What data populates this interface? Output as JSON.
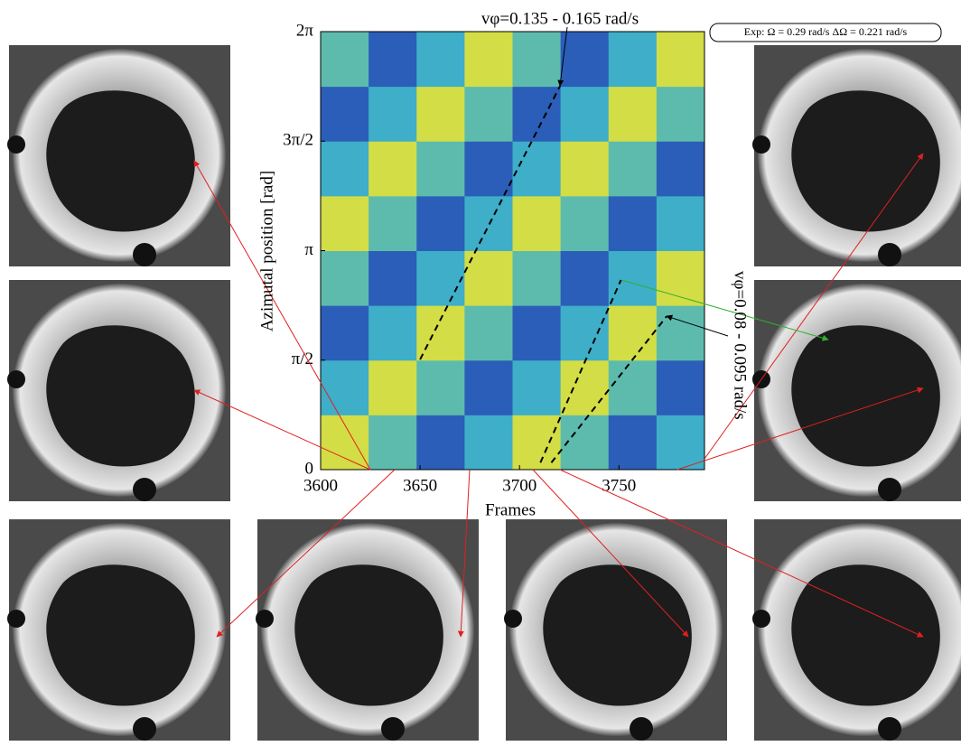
{
  "chart_data": {
    "type": "heatmap",
    "xlabel": "Frames",
    "ylabel": "Azimutal position [rad]",
    "xlim": [
      3600,
      3793
    ],
    "ylim": [
      0,
      6.2832
    ],
    "xticks": [
      3600,
      3650,
      3700,
      3750
    ],
    "yticks": [
      0,
      {
        "value": 1.5708,
        "label": "π/2"
      },
      {
        "value": 3.1416,
        "label": "π"
      },
      {
        "value": 4.7124,
        "label": "3π/2"
      },
      {
        "value": 6.2832,
        "label": "2π"
      }
    ],
    "zlim": [
      0,
      1
    ],
    "colorscale": [
      "#2b3fa8",
      "#2aa5dc",
      "#8fd07e",
      "#f0e22c"
    ],
    "z": [
      [
        0.9,
        0.5,
        0.1,
        0.4,
        0.9,
        0.5,
        0.1,
        0.4
      ],
      [
        0.4,
        0.9,
        0.5,
        0.1,
        0.4,
        0.9,
        0.5,
        0.1
      ],
      [
        0.1,
        0.4,
        0.9,
        0.5,
        0.1,
        0.4,
        0.9,
        0.5
      ],
      [
        0.5,
        0.1,
        0.4,
        0.9,
        0.5,
        0.1,
        0.4,
        0.9
      ],
      [
        0.9,
        0.5,
        0.1,
        0.4,
        0.9,
        0.5,
        0.1,
        0.4
      ],
      [
        0.4,
        0.9,
        0.5,
        0.1,
        0.4,
        0.9,
        0.5,
        0.1
      ],
      [
        0.1,
        0.4,
        0.9,
        0.5,
        0.1,
        0.4,
        0.9,
        0.5
      ],
      [
        0.5,
        0.1,
        0.4,
        0.9,
        0.5,
        0.1,
        0.4,
        0.9
      ]
    ],
    "guides": [
      {
        "x": [
          3650,
          3720.5
        ],
        "y": [
          1.58,
          5.51
        ]
      },
      {
        "x": [
          3710.5,
          3751
        ],
        "y": [
          0.1,
          2.72
        ]
      },
      {
        "x": [
          3716,
          3774
        ],
        "y": [
          0.1,
          2.2
        ]
      }
    ],
    "annotations": {
      "fast": "vφ=0.135 - 0.165 rad/s",
      "slow": "vφ=0.08 - 0.095 rad/s",
      "experiment": "Exp: Ω = 0.29 rad/s ΔΩ = 0.221 rad/s"
    }
  }
}
